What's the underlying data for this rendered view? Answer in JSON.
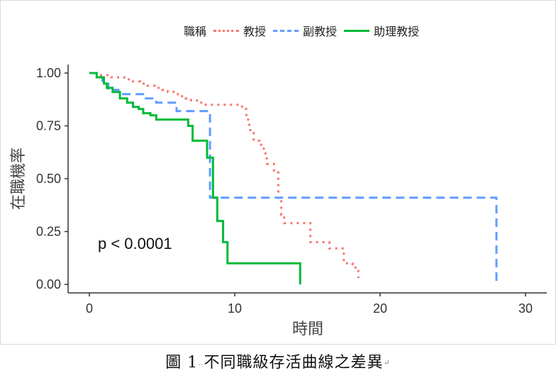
{
  "chart_data": {
    "type": "line",
    "title": "",
    "xlabel": "時間",
    "ylabel": "在職機率",
    "xlim": [
      0,
      30
    ],
    "ylim": [
      0,
      1
    ],
    "x_ticks": [
      "0",
      "10",
      "20",
      "30"
    ],
    "y_ticks": [
      "0.00",
      "0.25",
      "0.50",
      "0.75",
      "1.00"
    ],
    "legend_title": "職稱",
    "legend_position": "top",
    "annotation": "p < 0.0001",
    "grid": false,
    "series": [
      {
        "name": "教授",
        "color": "#F8766D",
        "line_style": "dotted",
        "points": [
          [
            0,
            1.0
          ],
          [
            0.8,
            1.0
          ],
          [
            0.8,
            0.99
          ],
          [
            1.5,
            0.99
          ],
          [
            1.5,
            0.98
          ],
          [
            2.4,
            0.98
          ],
          [
            2.4,
            0.97
          ],
          [
            3.0,
            0.97
          ],
          [
            3.0,
            0.96
          ],
          [
            3.5,
            0.96
          ],
          [
            3.5,
            0.95
          ],
          [
            4.0,
            0.95
          ],
          [
            4.0,
            0.94
          ],
          [
            4.5,
            0.94
          ],
          [
            4.5,
            0.93
          ],
          [
            5.0,
            0.93
          ],
          [
            5.0,
            0.92
          ],
          [
            5.4,
            0.92
          ],
          [
            5.4,
            0.91
          ],
          [
            5.8,
            0.91
          ],
          [
            5.8,
            0.9
          ],
          [
            6.2,
            0.9
          ],
          [
            6.2,
            0.89
          ],
          [
            6.6,
            0.89
          ],
          [
            6.6,
            0.88
          ],
          [
            7.0,
            0.88
          ],
          [
            7.0,
            0.87
          ],
          [
            7.5,
            0.87
          ],
          [
            7.5,
            0.86
          ],
          [
            8.0,
            0.86
          ],
          [
            8.0,
            0.85
          ],
          [
            10.5,
            0.85
          ],
          [
            10.5,
            0.83
          ],
          [
            10.8,
            0.83
          ],
          [
            10.8,
            0.78
          ],
          [
            11.0,
            0.78
          ],
          [
            11.0,
            0.73
          ],
          [
            11.3,
            0.73
          ],
          [
            11.3,
            0.68
          ],
          [
            11.7,
            0.68
          ],
          [
            11.7,
            0.66
          ],
          [
            12.0,
            0.66
          ],
          [
            12.0,
            0.62
          ],
          [
            12.2,
            0.62
          ],
          [
            12.2,
            0.57
          ],
          [
            12.7,
            0.57
          ],
          [
            12.7,
            0.53
          ],
          [
            13.0,
            0.53
          ],
          [
            13.0,
            0.4
          ],
          [
            13.2,
            0.4
          ],
          [
            13.2,
            0.33
          ],
          [
            13.4,
            0.33
          ],
          [
            13.4,
            0.29
          ],
          [
            15.2,
            0.29
          ],
          [
            15.2,
            0.2
          ],
          [
            16.5,
            0.2
          ],
          [
            16.5,
            0.17
          ],
          [
            17.5,
            0.17
          ],
          [
            17.5,
            0.1
          ],
          [
            18.1,
            0.1
          ],
          [
            18.1,
            0.08
          ],
          [
            18.5,
            0.08
          ],
          [
            18.5,
            0.03
          ]
        ]
      },
      {
        "name": "副教授",
        "color": "#619CFF",
        "line_style": "dashed",
        "points": [
          [
            0,
            1.0
          ],
          [
            0.6,
            1.0
          ],
          [
            0.6,
            0.98
          ],
          [
            0.9,
            0.98
          ],
          [
            0.9,
            0.95
          ],
          [
            1.3,
            0.95
          ],
          [
            1.3,
            0.92
          ],
          [
            2.0,
            0.92
          ],
          [
            2.0,
            0.9
          ],
          [
            3.8,
            0.9
          ],
          [
            3.8,
            0.88
          ],
          [
            4.6,
            0.88
          ],
          [
            4.6,
            0.86
          ],
          [
            6.0,
            0.86
          ],
          [
            6.0,
            0.82
          ],
          [
            8.3,
            0.82
          ],
          [
            8.3,
            0.41
          ],
          [
            28.0,
            0.41
          ],
          [
            28.0,
            0.0
          ]
        ]
      },
      {
        "name": "助理教授",
        "color": "#00BA38",
        "line_style": "solid",
        "points": [
          [
            0,
            1.0
          ],
          [
            0.5,
            1.0
          ],
          [
            0.5,
            0.98
          ],
          [
            1.0,
            0.98
          ],
          [
            1.0,
            0.95
          ],
          [
            1.2,
            0.95
          ],
          [
            1.2,
            0.93
          ],
          [
            1.6,
            0.93
          ],
          [
            1.6,
            0.91
          ],
          [
            2.1,
            0.91
          ],
          [
            2.1,
            0.88
          ],
          [
            2.6,
            0.88
          ],
          [
            2.6,
            0.86
          ],
          [
            3.0,
            0.86
          ],
          [
            3.0,
            0.84
          ],
          [
            3.4,
            0.84
          ],
          [
            3.4,
            0.83
          ],
          [
            3.7,
            0.83
          ],
          [
            3.7,
            0.81
          ],
          [
            4.2,
            0.81
          ],
          [
            4.2,
            0.8
          ],
          [
            4.6,
            0.8
          ],
          [
            4.6,
            0.78
          ],
          [
            6.8,
            0.78
          ],
          [
            6.8,
            0.75
          ],
          [
            7.1,
            0.75
          ],
          [
            7.1,
            0.68
          ],
          [
            8.1,
            0.68
          ],
          [
            8.1,
            0.6
          ],
          [
            8.5,
            0.6
          ],
          [
            8.5,
            0.41
          ],
          [
            8.8,
            0.41
          ],
          [
            8.8,
            0.3
          ],
          [
            9.2,
            0.3
          ],
          [
            9.2,
            0.2
          ],
          [
            9.5,
            0.2
          ],
          [
            9.5,
            0.1
          ],
          [
            14.5,
            0.1
          ],
          [
            14.5,
            0.0
          ]
        ]
      }
    ]
  },
  "caption": {
    "label": "圖 1",
    "dots": "‥",
    "text": "不同職級存活曲線之差異",
    "return_mark": "↵"
  }
}
